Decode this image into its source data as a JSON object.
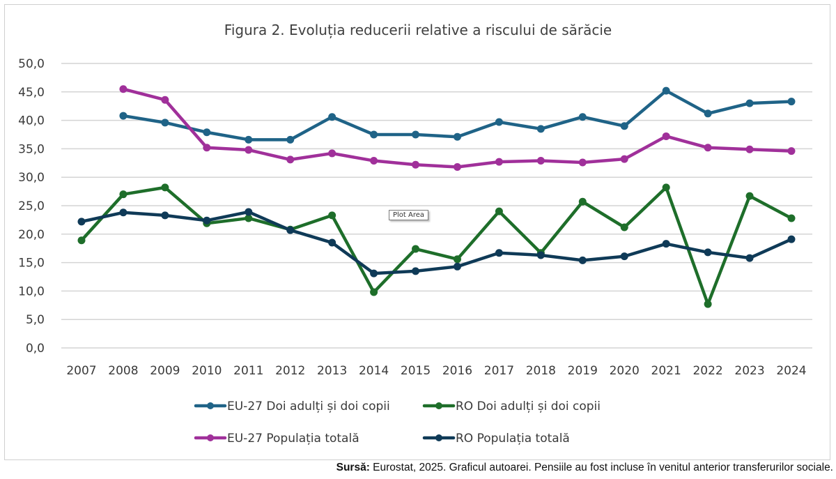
{
  "chart_data": {
    "type": "line",
    "title": "Figura 2. Evoluția reducerii relative a riscului de sărăcie",
    "xlabel": "",
    "ylabel": "",
    "ylim": [
      0,
      50
    ],
    "yticks": [
      "0,0",
      "5,0",
      "10,0",
      "15,0",
      "20,0",
      "25,0",
      "30,0",
      "35,0",
      "40,0",
      "45,0",
      "50,0"
    ],
    "ytick_values": [
      0,
      5,
      10,
      15,
      20,
      25,
      30,
      35,
      40,
      45,
      50
    ],
    "grid": true,
    "legend_position": "bottom",
    "categories": [
      "2007",
      "2008",
      "2009",
      "2010",
      "2011",
      "2012",
      "2013",
      "2014",
      "2015",
      "2016",
      "2017",
      "2018",
      "2019",
      "2020",
      "2021",
      "2022",
      "2023",
      "2024"
    ],
    "series": [
      {
        "name": "EU-27 Doi adulți și doi copii",
        "color": "#1f6387",
        "values": [
          null,
          40.8,
          39.6,
          37.9,
          36.6,
          36.6,
          40.6,
          37.5,
          37.5,
          37.1,
          39.7,
          38.5,
          40.6,
          39.0,
          45.2,
          41.2,
          43.0,
          43.3
        ]
      },
      {
        "name": "RO Doi adulți și doi copii",
        "color": "#1e6e2a",
        "values": [
          18.9,
          27.0,
          28.2,
          21.9,
          22.8,
          20.8,
          23.3,
          9.8,
          17.4,
          15.6,
          24.0,
          16.7,
          25.7,
          21.2,
          28.2,
          7.7,
          26.7,
          22.8
        ]
      },
      {
        "name": "EU-27 Populația totală",
        "color": "#a0309a",
        "values": [
          null,
          45.5,
          43.6,
          35.2,
          34.8,
          33.1,
          34.2,
          32.9,
          32.2,
          31.8,
          32.7,
          32.9,
          32.6,
          33.2,
          37.2,
          35.2,
          34.9,
          34.6
        ]
      },
      {
        "name": "RO  Populația totală",
        "color": "#0f3a57",
        "values": [
          22.2,
          23.8,
          23.3,
          22.4,
          23.9,
          20.7,
          18.5,
          13.1,
          13.5,
          14.3,
          16.7,
          16.3,
          15.4,
          16.1,
          18.3,
          16.8,
          15.8,
          19.1
        ]
      }
    ]
  },
  "tooltip": {
    "text": "Plot Area"
  },
  "source": {
    "label": "Sursă:",
    "text": " Eurostat, 2025. Graficul autoarei. Pensiile au fost incluse în venitul anterior transferurilor sociale."
  }
}
